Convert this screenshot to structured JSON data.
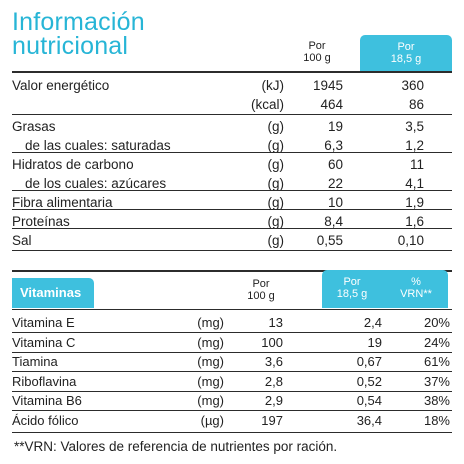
{
  "title": [
    "Información",
    "nutricional"
  ],
  "nutrition": {
    "col1_header": [
      "Por",
      "100 g"
    ],
    "col2_header": [
      "Por",
      "18,5 g"
    ],
    "rows": [
      {
        "label": "Valor energético",
        "unit": "(kJ)",
        "v1": "1945",
        "v2": "360"
      },
      {
        "label": "",
        "unit": "(kcal)",
        "v1": "464",
        "v2": "86"
      },
      {
        "label": "Grasas",
        "unit": "(g)",
        "v1": "19",
        "v2": "3,5"
      },
      {
        "label": "de las cuales: saturadas",
        "unit": "(g)",
        "v1": "6,3",
        "v2": "1,2"
      },
      {
        "label": "Hidratos de carbono",
        "unit": "(g)",
        "v1": "60",
        "v2": "11"
      },
      {
        "label": "de los cuales: azúcares",
        "unit": "(g)",
        "v1": "22",
        "v2": "4,1"
      },
      {
        "label": "Fibra alimentaria",
        "unit": "(g)",
        "v1": "10",
        "v2": "1,9"
      },
      {
        "label": "Proteínas",
        "unit": "(g)",
        "v1": "8,4",
        "v2": "1,6"
      },
      {
        "label": "Sal",
        "unit": "(g)",
        "v1": "0,55",
        "v2": "0,10"
      }
    ]
  },
  "vitamins": {
    "section_label": "Vitaminas",
    "col1_header": [
      "Por",
      "100 g"
    ],
    "col2_header": [
      "Por",
      "18,5 g"
    ],
    "col3_header": [
      "%",
      "VRN**"
    ],
    "rows": [
      {
        "label": "Vitamina E",
        "unit": "(mg)",
        "p100": "13",
        "p185": "2,4",
        "vrn": "20%"
      },
      {
        "label": "Vitamina C",
        "unit": "(mg)",
        "p100": "100",
        "p185": "19",
        "vrn": "24%"
      },
      {
        "label": "Tiamina",
        "unit": "(mg)",
        "p100": "3,6",
        "p185": "0,67",
        "vrn": "61%"
      },
      {
        "label": "Riboflavina",
        "unit": "(mg)",
        "p100": "2,8",
        "p185": "0,52",
        "vrn": "37%"
      },
      {
        "label": "Vitamina B6",
        "unit": "(mg)",
        "p100": "2,9",
        "p185": "0,54",
        "vrn": "38%"
      },
      {
        "label": "Ácido fólico",
        "unit": "(µg)",
        "p100": "197",
        "p185": "36,4",
        "vrn": "18%"
      }
    ]
  },
  "footnote": "**VRN: Valores de referencia de nutrientes por ración.",
  "colors": {
    "accent": "#3ec0de",
    "title": "#27b5d6"
  }
}
